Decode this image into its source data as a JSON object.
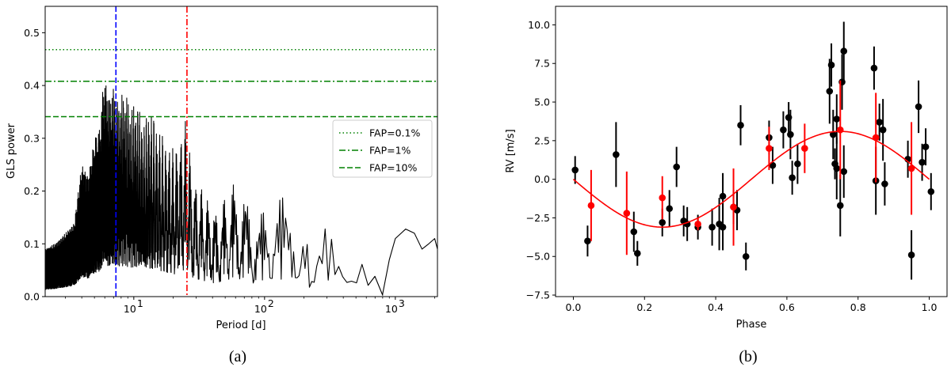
{
  "panel_a": {
    "caption": "(a)",
    "xlabel": "Period [d]",
    "ylabel": "GLS power",
    "x_scale": "log",
    "xlim": [
      2.1,
      2100
    ],
    "ylim": [
      0,
      0.55
    ],
    "y_ticks": [
      "0.0",
      "0.1",
      "0.2",
      "0.3",
      "0.4",
      "0.5"
    ],
    "x_ticks": [
      {
        "base": "10",
        "exp": "1"
      },
      {
        "base": "10",
        "exp": "2"
      },
      {
        "base": "10",
        "exp": "3"
      }
    ],
    "fap_lines": [
      {
        "label": "FAP=0.1%",
        "power": 0.468,
        "style": "dotted",
        "color": "#008000"
      },
      {
        "label": "FAP=1%",
        "power": 0.408,
        "style": "dashdot",
        "color": "#008000"
      },
      {
        "label": "FAP=10%",
        "power": 0.341,
        "style": "dashed",
        "color": "#008000"
      }
    ],
    "vertical_lines": [
      {
        "period": 7.3,
        "style": "dashed",
        "color": "#0000ff"
      },
      {
        "period": 25.5,
        "style": "dashdot",
        "color": "#ff0000"
      }
    ],
    "legend_position": "right",
    "periodogram_envelope": [
      [
        2.1,
        0.09
      ],
      [
        2.5,
        0.1
      ],
      [
        3.0,
        0.12
      ],
      [
        3.5,
        0.14
      ],
      [
        4.0,
        0.25
      ],
      [
        4.5,
        0.23
      ],
      [
        5.0,
        0.3
      ],
      [
        5.5,
        0.32
      ],
      [
        5.9,
        0.42
      ],
      [
        6.5,
        0.38
      ],
      [
        7.0,
        0.4
      ],
      [
        7.5,
        0.37
      ],
      [
        8.5,
        0.39
      ],
      [
        9.5,
        0.36
      ],
      [
        10.5,
        0.37
      ],
      [
        12,
        0.33
      ],
      [
        13,
        0.36
      ],
      [
        15,
        0.33
      ],
      [
        17,
        0.3
      ],
      [
        20,
        0.28
      ],
      [
        22,
        0.3
      ],
      [
        25.5,
        0.34
      ],
      [
        28,
        0.23
      ],
      [
        32,
        0.21
      ],
      [
        38,
        0.18
      ],
      [
        45,
        0.16
      ],
      [
        55,
        0.22
      ],
      [
        70,
        0.2
      ],
      [
        90,
        0.15
      ],
      [
        120,
        0.21
      ],
      [
        160,
        0.17
      ],
      [
        200,
        0.2
      ],
      [
        230,
        0.03
      ],
      [
        300,
        0.16
      ],
      [
        380,
        0.12
      ],
      [
        420,
        0.14
      ],
      [
        500,
        0.13
      ],
      [
        560,
        0.12
      ],
      [
        650,
        0.08
      ],
      [
        800,
        0.005
      ]
    ],
    "periodogram_tail": [
      [
        800,
        0.005
      ],
      [
        900,
        0.07
      ],
      [
        1000,
        0.11
      ],
      [
        1200,
        0.128
      ],
      [
        1400,
        0.12
      ],
      [
        1600,
        0.09
      ],
      [
        1800,
        0.1
      ],
      [
        2000,
        0.11
      ],
      [
        2100,
        0.09
      ]
    ]
  },
  "panel_b": {
    "caption": "(b)",
    "xlabel": "Phase",
    "ylabel": "RV [m/s]",
    "xlim": [
      -0.05,
      1.05
    ],
    "ylim": [
      -7.6,
      11.2
    ],
    "x_ticks": [
      "0.0",
      "0.2",
      "0.4",
      "0.6",
      "0.8",
      "1.0"
    ],
    "y_ticks": [
      "−7.5",
      "−5.0",
      "−2.5",
      "0.0",
      "2.5",
      "5.0",
      "7.5",
      "10.0"
    ],
    "model": {
      "amplitude": 3.1,
      "phase_of_min": 0.25,
      "color": "#ff0000"
    },
    "black_points": [
      [
        0.005,
        0.6,
        0.9
      ],
      [
        0.04,
        -4.0,
        1.0
      ],
      [
        0.12,
        1.6,
        2.1
      ],
      [
        0.17,
        -3.4,
        1.3
      ],
      [
        0.18,
        -4.8,
        0.8
      ],
      [
        0.25,
        -2.8,
        0.9
      ],
      [
        0.27,
        -1.9,
        1.2
      ],
      [
        0.29,
        0.8,
        1.3
      ],
      [
        0.31,
        -2.7,
        1.0
      ],
      [
        0.32,
        -2.9,
        1.1
      ],
      [
        0.35,
        -3.1,
        0.8
      ],
      [
        0.39,
        -3.1,
        1.2
      ],
      [
        0.41,
        -2.9,
        1.7
      ],
      [
        0.42,
        -1.1,
        1.5
      ],
      [
        0.42,
        -3.1,
        1.5
      ],
      [
        0.45,
        -1.8,
        1.1
      ],
      [
        0.46,
        -2.0,
        1.3
      ],
      [
        0.47,
        3.5,
        1.3
      ],
      [
        0.485,
        -5.0,
        0.9
      ],
      [
        0.55,
        2.7,
        1.1
      ],
      [
        0.56,
        0.9,
        1.2
      ],
      [
        0.59,
        3.2,
        1.2
      ],
      [
        0.605,
        4.0,
        1.0
      ],
      [
        0.61,
        2.9,
        1.6
      ],
      [
        0.615,
        0.1,
        1.1
      ],
      [
        0.63,
        1.0,
        1.3
      ],
      [
        0.72,
        5.7,
        2.1
      ],
      [
        0.725,
        7.4,
        1.4
      ],
      [
        0.73,
        2.9,
        1.6
      ],
      [
        0.735,
        1.0,
        1.0
      ],
      [
        0.74,
        0.7,
        2.0
      ],
      [
        0.74,
        3.9,
        1.6
      ],
      [
        0.75,
        -1.7,
        2.0
      ],
      [
        0.755,
        6.3,
        1.8
      ],
      [
        0.76,
        8.3,
        1.9
      ],
      [
        0.76,
        0.5,
        1.7
      ],
      [
        0.845,
        7.2,
        1.4
      ],
      [
        0.85,
        -0.1,
        2.2
      ],
      [
        0.86,
        3.7,
        1.2
      ],
      [
        0.87,
        3.2,
        2.0
      ],
      [
        0.875,
        -0.3,
        1.4
      ],
      [
        0.94,
        1.3,
        1.2
      ],
      [
        0.95,
        -4.9,
        1.6
      ],
      [
        0.97,
        4.7,
        1.7
      ],
      [
        0.98,
        1.1,
        1.2
      ],
      [
        0.99,
        2.1,
        1.2
      ],
      [
        1.005,
        -0.8,
        1.2
      ]
    ],
    "red_points": [
      [
        0.05,
        -1.7,
        2.3
      ],
      [
        0.15,
        -2.2,
        2.7
      ],
      [
        0.25,
        -1.2,
        1.4
      ],
      [
        0.35,
        -2.9,
        0.4
      ],
      [
        0.45,
        -1.8,
        2.5
      ],
      [
        0.55,
        2.0,
        1.4
      ],
      [
        0.65,
        2.0,
        1.6
      ],
      [
        0.75,
        3.2,
        3.2
      ],
      [
        0.85,
        2.7,
        2.9
      ],
      [
        0.95,
        0.7,
        3.0
      ]
    ]
  }
}
